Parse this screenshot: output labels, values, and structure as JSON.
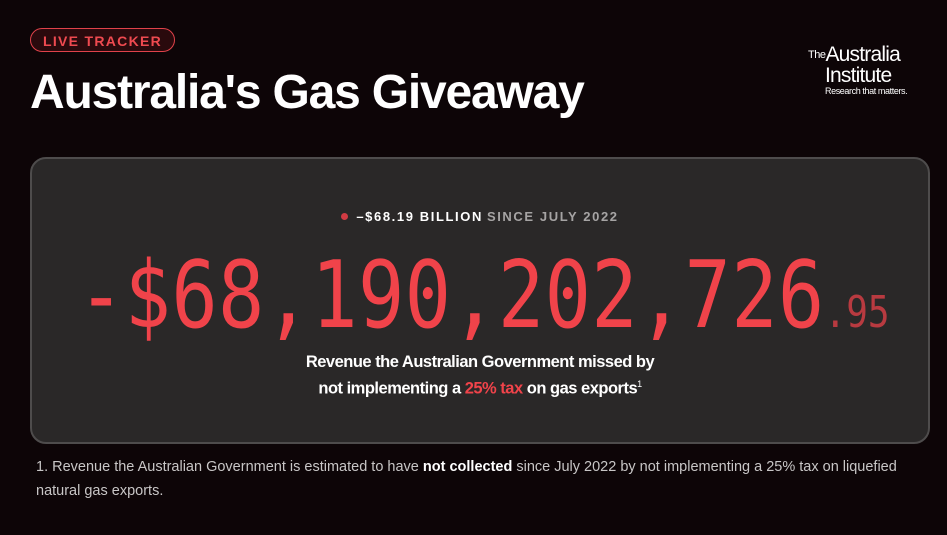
{
  "header": {
    "badge": "LIVE TRACKER",
    "title": "Australia's Gas Giveaway",
    "logo": {
      "the": "The",
      "line1": "Australia",
      "line2": "Institute",
      "tagline": "Research that matters."
    }
  },
  "tracker": {
    "summary_amount": "–$68.19 BILLION",
    "summary_since": "SINCE JULY 2022",
    "counter_main": "-$68,190,202,726",
    "counter_cents": ".95",
    "description_line1": "Revenue the Australian Government missed by",
    "description_pre": "not implementing a ",
    "description_highlight": "25% tax",
    "description_post": " on gas exports",
    "footnote_ref": "1"
  },
  "footnote": {
    "number": "1.",
    "text_pre": "Revenue the Australian Government is estimated to have ",
    "text_bold": "not collected",
    "text_post": " since July 2022 by not implementing a 25% tax on liquefied natural gas exports."
  },
  "colors": {
    "accent": "#f0434a",
    "background": "#0d0507",
    "card": "#2a2828"
  }
}
